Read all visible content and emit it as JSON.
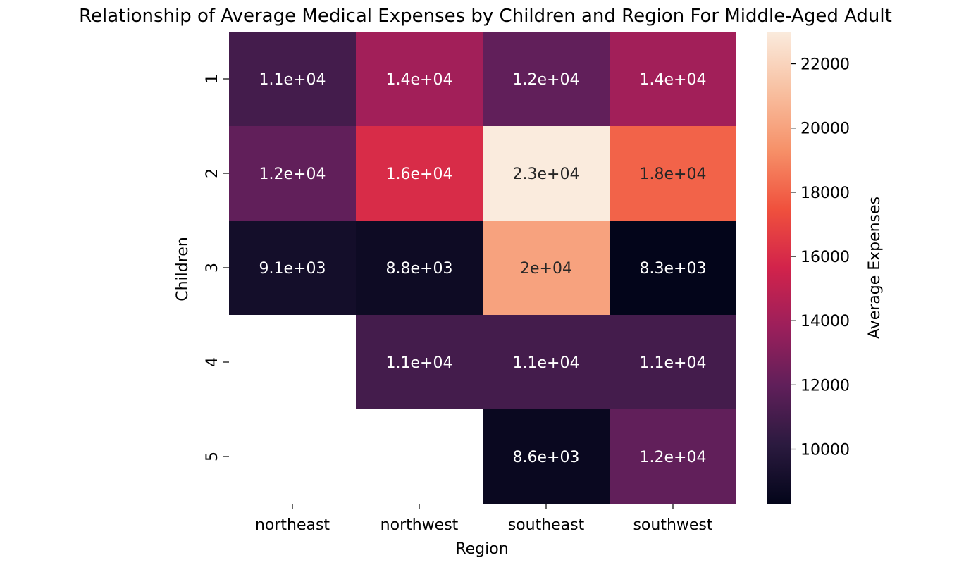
{
  "chart_data": {
    "type": "heatmap",
    "title": "Relationship of Average Medical Expenses by Children and Region For Middle-Aged Adult",
    "xlabel": "Region",
    "ylabel": "Children",
    "x_categories": [
      "northeast",
      "northwest",
      "southeast",
      "southwest"
    ],
    "y_categories": [
      "1",
      "2",
      "3",
      "4",
      "5"
    ],
    "values": [
      [
        11000,
        14000,
        12000,
        14000
      ],
      [
        12000,
        16000,
        23000,
        18000
      ],
      [
        9100,
        8800,
        20000,
        8300
      ],
      [
        null,
        11000,
        11000,
        11000
      ],
      [
        null,
        null,
        8600,
        12000
      ]
    ],
    "annotations": [
      [
        "1.1e+04",
        "1.4e+04",
        "1.2e+04",
        "1.4e+04"
      ],
      [
        "1.2e+04",
        "1.6e+04",
        "2.3e+04",
        "1.8e+04"
      ],
      [
        "9.1e+03",
        "8.8e+03",
        "2e+04",
        "8.3e+03"
      ],
      [
        "",
        "1.1e+04",
        "1.1e+04",
        "1.1e+04"
      ],
      [
        "",
        "",
        "8.6e+03",
        "1.2e+04"
      ]
    ],
    "colorbar": {
      "label": "Average Expenses",
      "range": [
        8300,
        23000
      ],
      "ticks": [
        10000,
        12000,
        14000,
        16000,
        18000,
        20000,
        22000
      ],
      "tick_labels": [
        "10000",
        "12000",
        "14000",
        "16000",
        "18000",
        "20000",
        "22000"
      ],
      "colormap": "rocket",
      "stops": [
        "#03051a",
        "#2b1a3f",
        "#601f5a",
        "#9c1f5b",
        "#d2234b",
        "#f0513d",
        "#f69169",
        "#f8c0a1",
        "#faebdd"
      ]
    },
    "grid": false
  }
}
